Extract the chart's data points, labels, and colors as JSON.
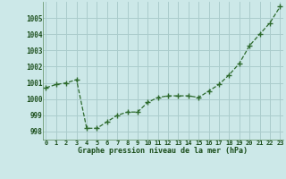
{
  "x": [
    0,
    1,
    2,
    3,
    4,
    5,
    6,
    7,
    8,
    9,
    10,
    11,
    12,
    13,
    14,
    15,
    16,
    17,
    18,
    19,
    20,
    21,
    22,
    23
  ],
  "y": [
    1000.7,
    1000.9,
    1001.0,
    1001.2,
    998.2,
    998.2,
    998.6,
    999.0,
    999.2,
    999.2,
    999.8,
    1000.1,
    1000.2,
    1000.2,
    1000.2,
    1000.1,
    1000.5,
    1000.9,
    1001.5,
    1002.2,
    1003.3,
    1004.0,
    1004.7,
    1005.7
  ],
  "line_color": "#2d6a2d",
  "marker": "+",
  "marker_color": "#2d6a2d",
  "bg_color": "#cce8e8",
  "grid_color": "#aacccc",
  "xlabel": "Graphe pression niveau de la mer (hPa)",
  "xlabel_color": "#1a4d1a",
  "tick_color": "#1a4d1a",
  "ylim": [
    997.5,
    1006.0
  ],
  "xlim": [
    -0.3,
    23.3
  ],
  "yticks": [
    998,
    999,
    1000,
    1001,
    1002,
    1003,
    1004,
    1005
  ],
  "xtick_labels": [
    "0",
    "1",
    "2",
    "3",
    "4",
    "5",
    "6",
    "7",
    "8",
    "9",
    "10",
    "11",
    "12",
    "13",
    "14",
    "15",
    "16",
    "17",
    "18",
    "19",
    "20",
    "21",
    "22",
    "23"
  ]
}
